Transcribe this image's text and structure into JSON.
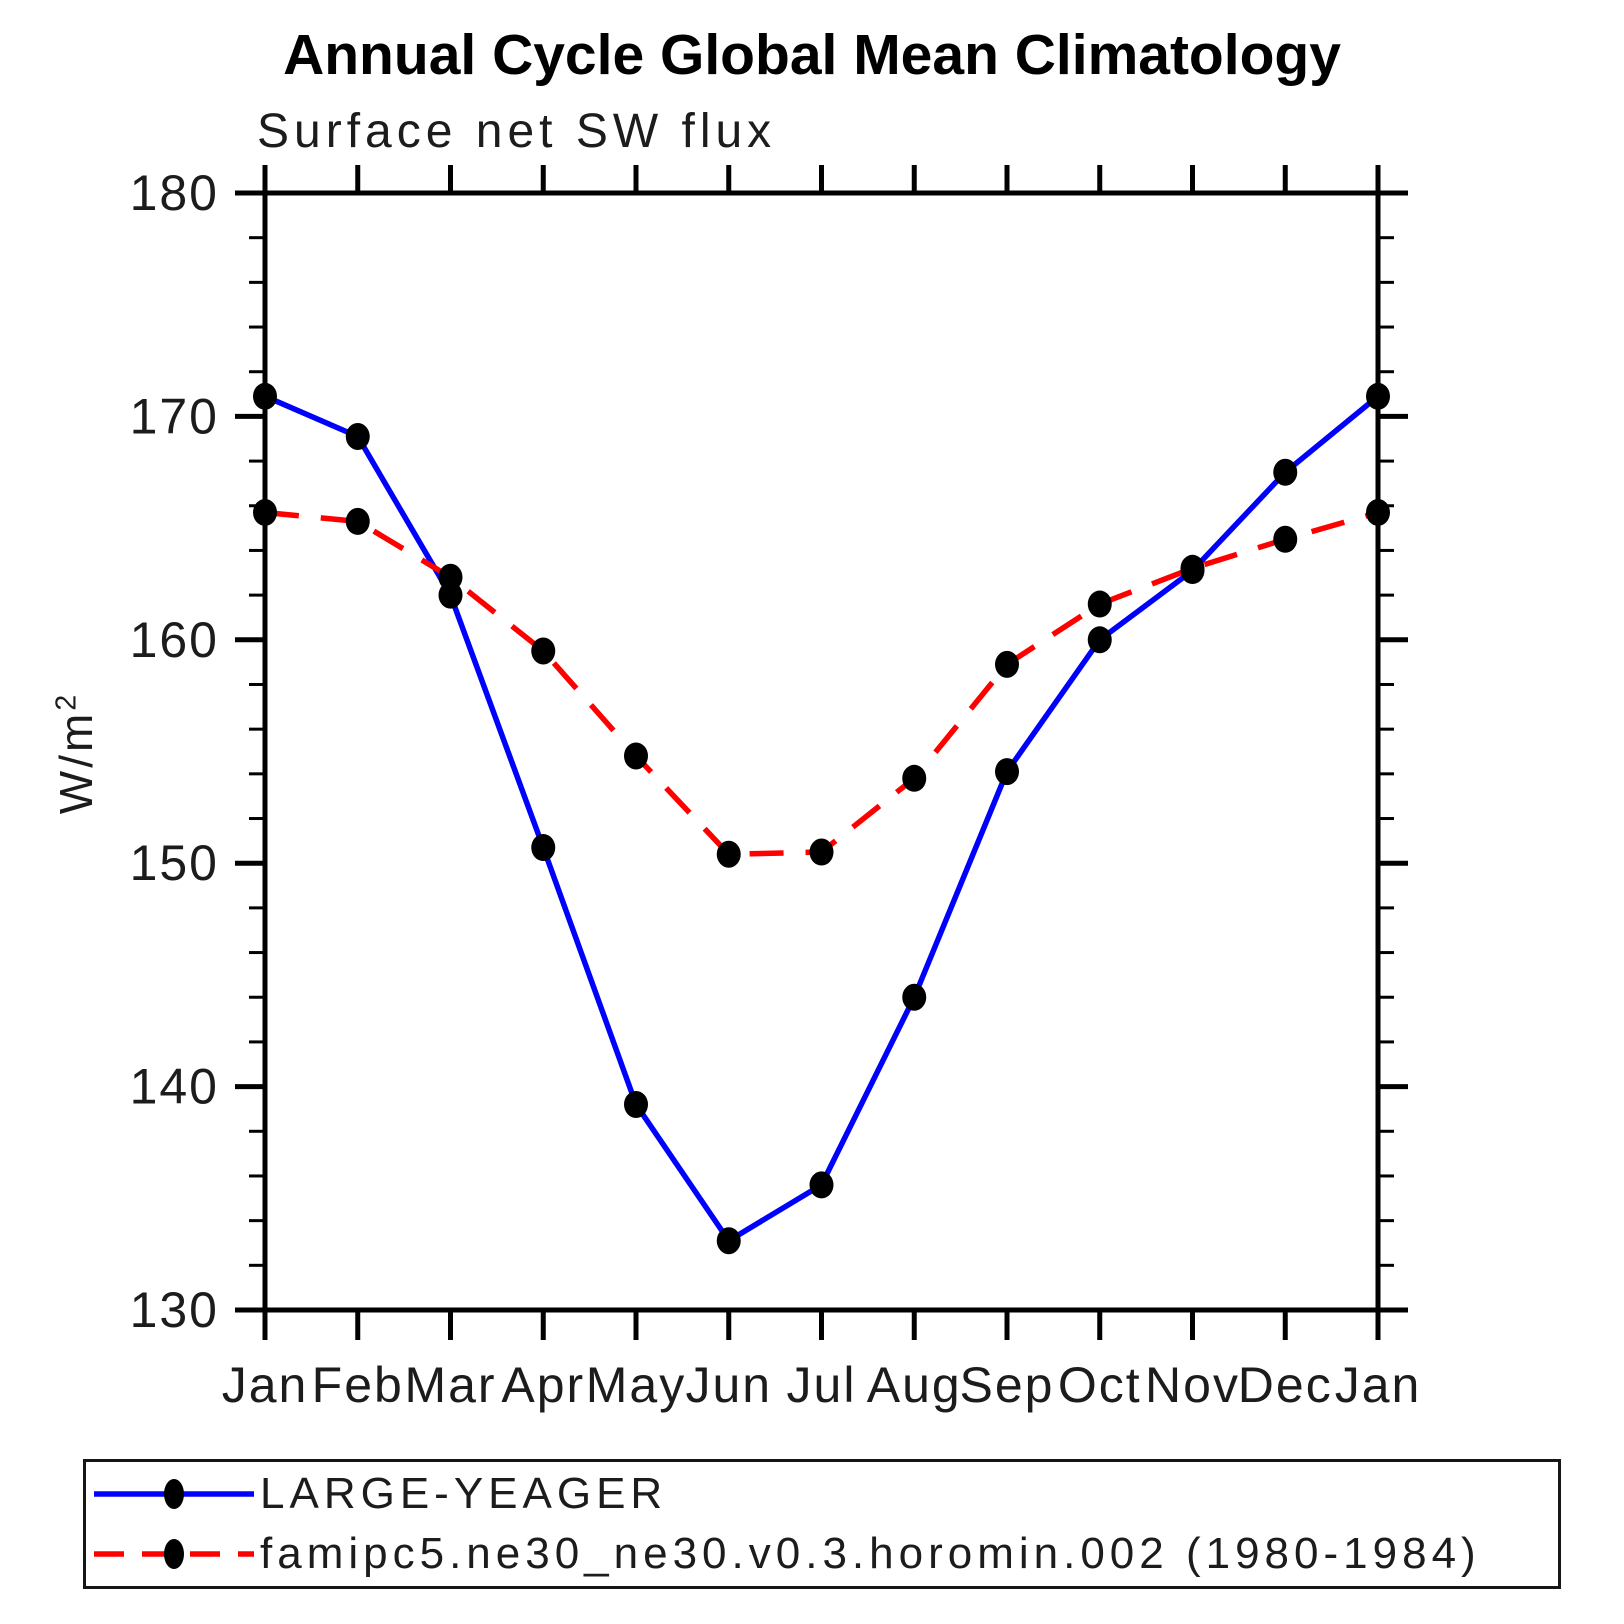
{
  "chart_data": {
    "type": "line",
    "title": "Annual Cycle Global Mean Climatology",
    "subtitle": "Surface net SW flux",
    "ylabel": "W/m²",
    "ylabel_base": "W/m",
    "ylabel_sup": "2",
    "categories": [
      "Jan",
      "Feb",
      "Mar",
      "Apr",
      "May",
      "Jun",
      "Jul",
      "Aug",
      "Sep",
      "Oct",
      "Nov",
      "Dec",
      "Jan"
    ],
    "y_axis": {
      "min": 130,
      "max": 180,
      "major_step": 10,
      "minor_step": 2,
      "tick_labels": [
        "130",
        "140",
        "150",
        "160",
        "170",
        "180"
      ]
    },
    "ylim": [
      130,
      180
    ],
    "grid": false,
    "legend_position": "bottom-left-box",
    "axis_color": "#000000",
    "series": [
      {
        "name": "LARGE-YEAGER",
        "color": "#0000ff",
        "line_style": "solid",
        "marker": "filled-circle",
        "marker_color": "#000000",
        "values": [
          170.9,
          169.1,
          162.0,
          150.7,
          139.2,
          133.1,
          135.6,
          144.0,
          154.1,
          160.0,
          163.1,
          167.5,
          170.9
        ]
      },
      {
        "name": "famipc5.ne30_ne30.v0.3.horomin.002 (1980-1984)",
        "color": "#ff0000",
        "line_style": "dashed",
        "marker": "filled-circle",
        "marker_color": "#000000",
        "values": [
          165.7,
          165.3,
          162.8,
          159.5,
          154.8,
          150.4,
          150.5,
          153.8,
          158.9,
          161.6,
          163.2,
          164.5,
          165.7
        ]
      }
    ]
  }
}
